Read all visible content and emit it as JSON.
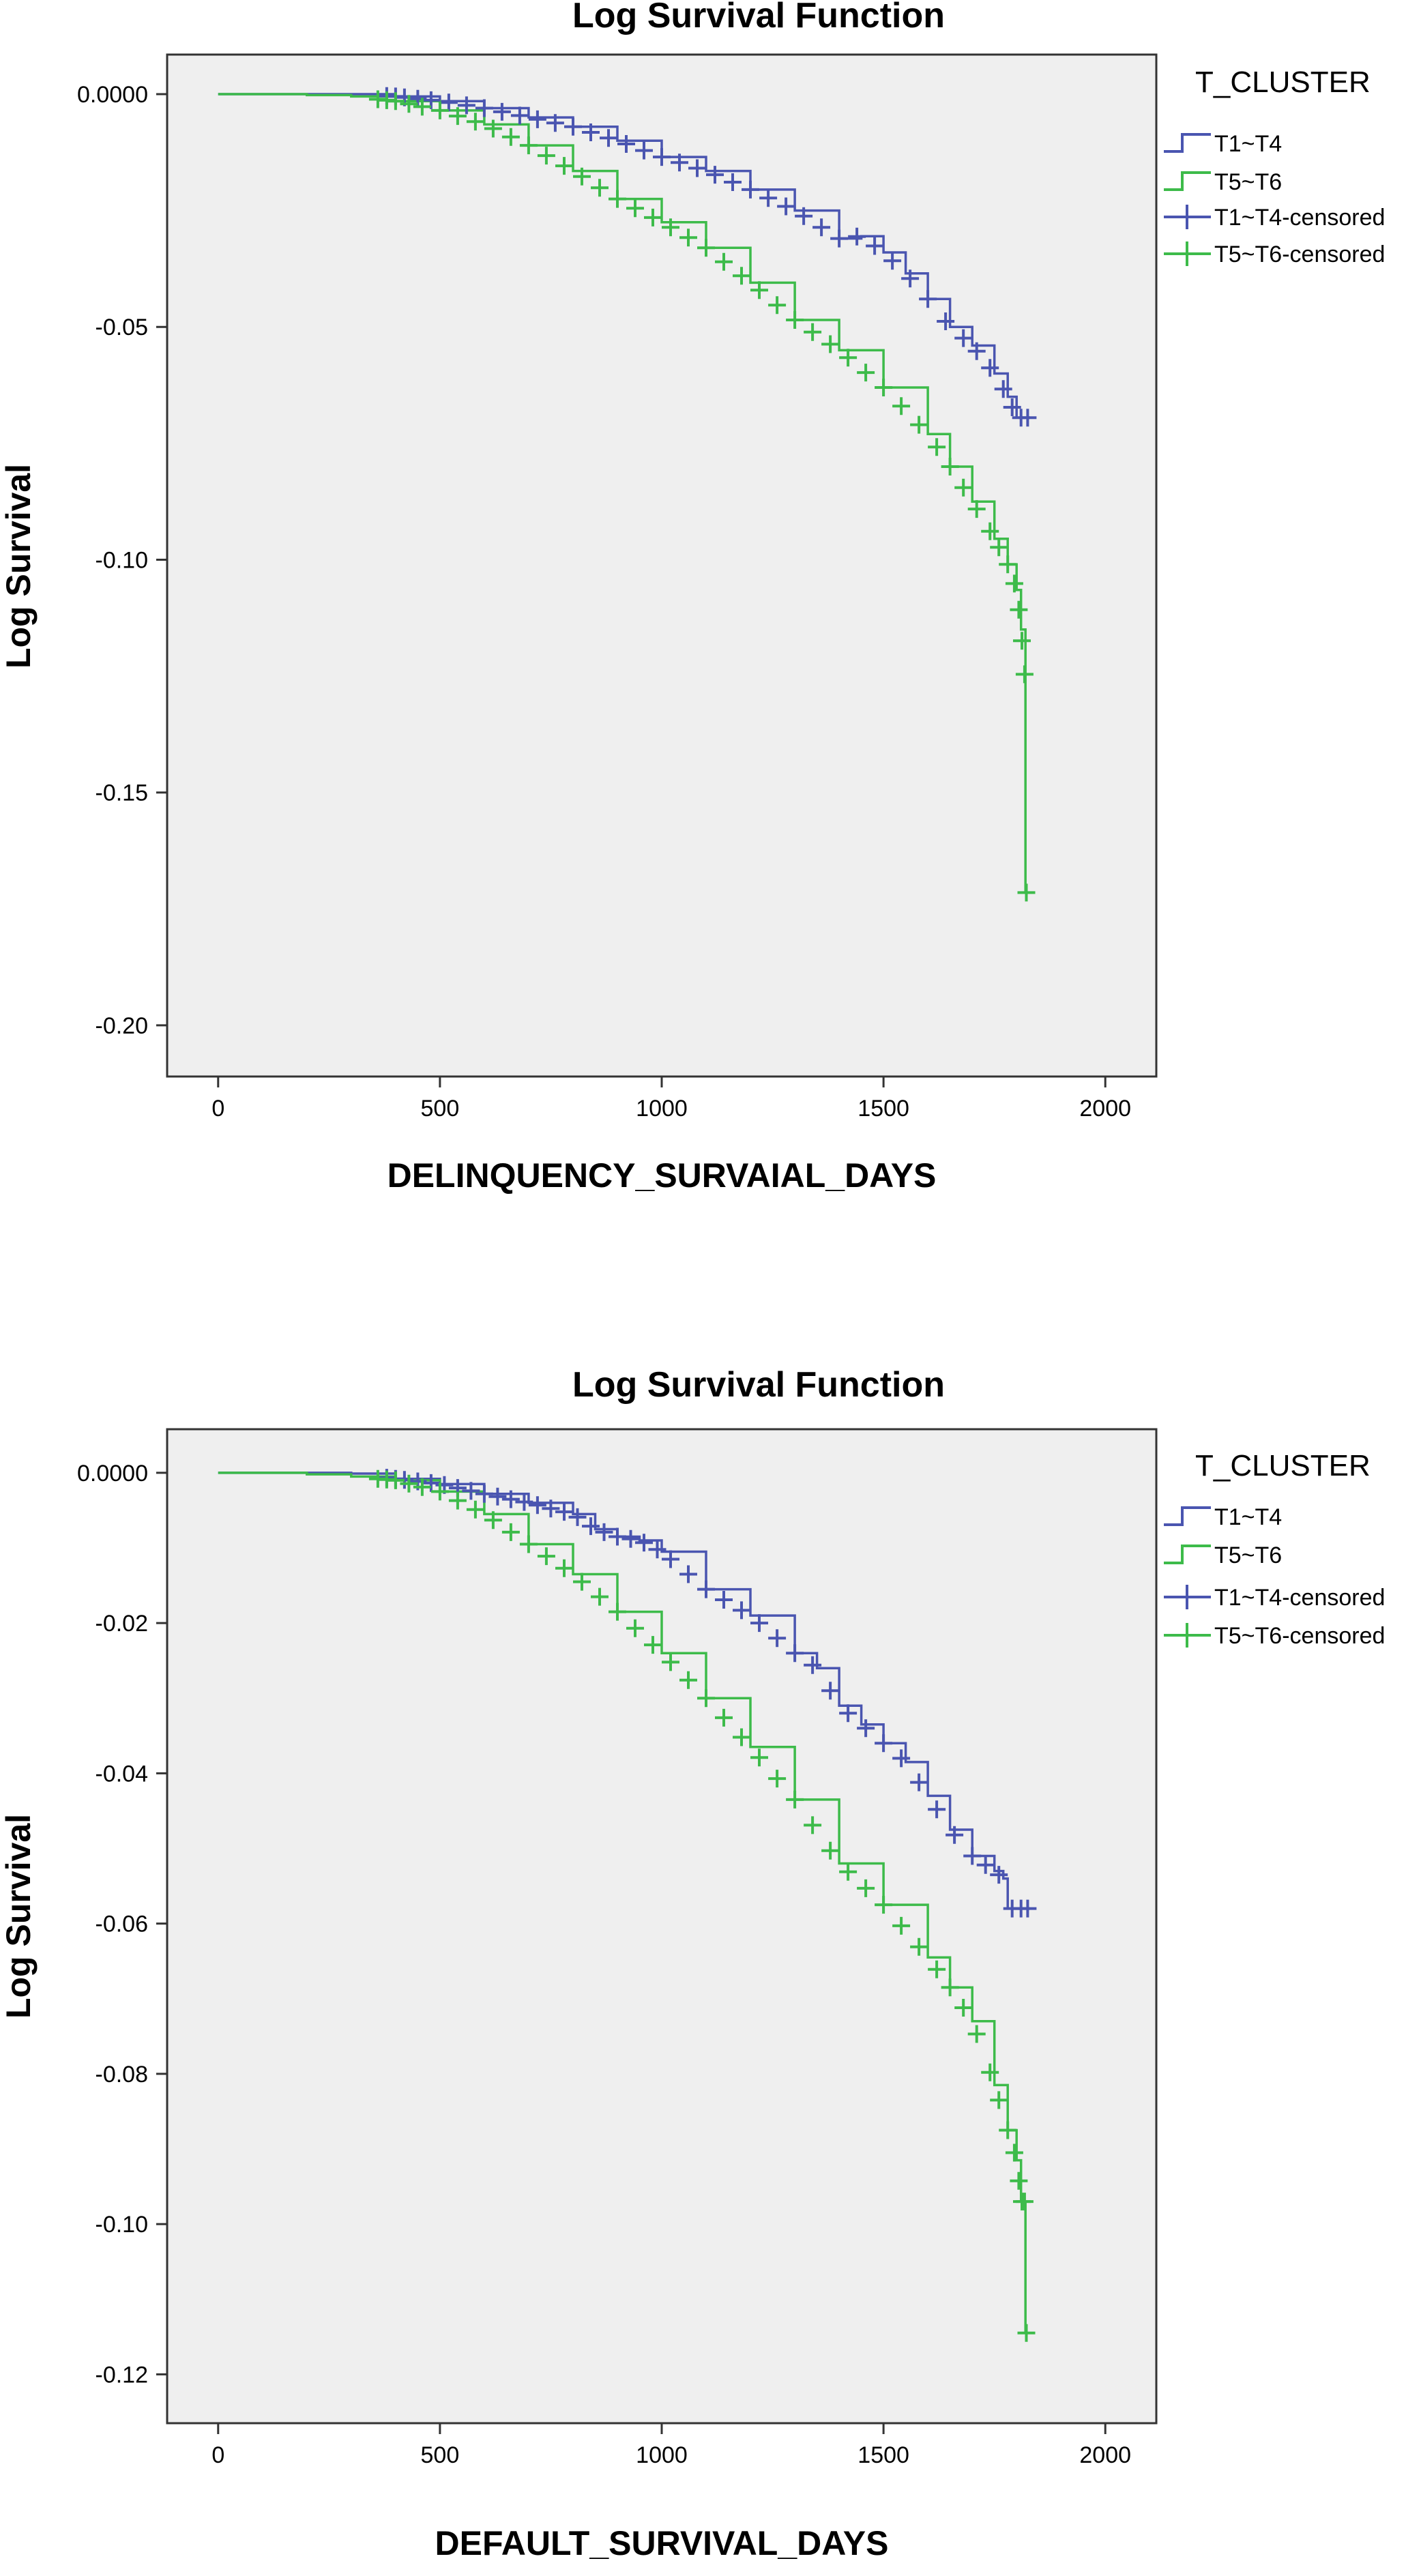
{
  "colors": {
    "t1_t4": "#4a55b0",
    "t5_t6": "#3dbb4a",
    "plot_bg": "#efefef",
    "axis": "#333333"
  },
  "chart_data": [
    {
      "type": "line",
      "title": "Log Survival Function",
      "xlabel": "DELINQUENCY_SURVAIAL_DAYS",
      "ylabel": "Log Survival",
      "xlim": [
        -115,
        2115
      ],
      "ylim": [
        -0.211,
        0.0085
      ],
      "x_ticks": [
        0,
        500,
        1000,
        1500,
        2000
      ],
      "x_tick_labels": [
        "0",
        "500",
        "1000",
        "1500",
        "2000"
      ],
      "y_ticks": [
        0,
        -0.05,
        -0.1,
        -0.15,
        -0.2
      ],
      "y_tick_labels": [
        "0.0000",
        "-0.05",
        "-0.10",
        "-0.15",
        "-0.20"
      ],
      "grid": false,
      "legend_title": "T_CLUSTER",
      "legend": [
        "T1~T4",
        "T5~T6",
        "T1~T4-censored",
        "T5~T6-censored"
      ],
      "series": [
        {
          "name": "T1~T4",
          "x": [
            0,
            300,
            400,
            500,
            600,
            700,
            800,
            900,
            1000,
            1100,
            1200,
            1300,
            1400,
            1450,
            1500,
            1550,
            1600,
            1650,
            1700,
            1750,
            1780,
            1800,
            1830
          ],
          "y": [
            0,
            0,
            -0.0005,
            -0.0015,
            -0.003,
            -0.005,
            -0.007,
            -0.01,
            -0.0135,
            -0.0165,
            -0.0205,
            -0.025,
            -0.031,
            -0.0305,
            -0.034,
            -0.0385,
            -0.044,
            -0.05,
            -0.054,
            -0.06,
            -0.065,
            -0.0695,
            -0.0695
          ],
          "censored_x": [
            380,
            400,
            420,
            450,
            480,
            520,
            560,
            600,
            640,
            680,
            720,
            760,
            800,
            840,
            880,
            920,
            960,
            1000,
            1040,
            1080,
            1120,
            1160,
            1200,
            1240,
            1280,
            1320,
            1360,
            1400,
            1440,
            1480,
            1520,
            1560,
            1600,
            1640,
            1680,
            1710,
            1740,
            1770,
            1790,
            1810,
            1825
          ]
        },
        {
          "name": "T5~T6",
          "x": [
            0,
            200,
            300,
            400,
            500,
            600,
            700,
            800,
            900,
            1000,
            1100,
            1200,
            1300,
            1400,
            1500,
            1600,
            1650,
            1700,
            1750,
            1780,
            1800,
            1810,
            1820,
            1820,
            1822
          ],
          "y": [
            0,
            -0.0002,
            -0.0005,
            -0.0015,
            -0.0035,
            -0.0065,
            -0.011,
            -0.0165,
            -0.0225,
            -0.0275,
            -0.033,
            -0.0405,
            -0.0485,
            -0.055,
            -0.063,
            -0.073,
            -0.08,
            -0.0875,
            -0.0955,
            -0.101,
            -0.1065,
            -0.115,
            -0.127,
            -0.1715,
            -0.1715
          ],
          "censored_x": [
            360,
            380,
            400,
            430,
            460,
            500,
            540,
            580,
            620,
            660,
            700,
            740,
            780,
            820,
            860,
            900,
            940,
            980,
            1020,
            1060,
            1100,
            1140,
            1180,
            1220,
            1260,
            1300,
            1340,
            1380,
            1420,
            1460,
            1500,
            1540,
            1580,
            1620,
            1650,
            1680,
            1710,
            1740,
            1760,
            1780,
            1795,
            1805,
            1812,
            1818,
            1822
          ]
        }
      ]
    },
    {
      "type": "line",
      "title": "Log Survival Function",
      "xlabel": "DEFAULT_SURVIVAL_DAYS",
      "ylabel": "Log Survival",
      "xlim": [
        -115,
        2115
      ],
      "ylim": [
        -0.1265,
        0.0058
      ],
      "x_ticks": [
        0,
        500,
        1000,
        1500,
        2000
      ],
      "x_tick_labels": [
        "0",
        "500",
        "1000",
        "1500",
        "2000"
      ],
      "y_ticks": [
        0,
        -0.02,
        -0.04,
        -0.06,
        -0.08,
        -0.1,
        -0.12
      ],
      "y_tick_labels": [
        "0.0000",
        "-0.02",
        "-0.04",
        "-0.06",
        "-0.08",
        "-0.10",
        "-0.12"
      ],
      "grid": false,
      "legend_title": "T_CLUSTER",
      "legend": [
        "T1~T4",
        "T5~T6",
        "T1~T4-censored",
        "T5~T6-censored"
      ],
      "series": [
        {
          "name": "T1~T4",
          "x": [
            0,
            300,
            400,
            500,
            600,
            700,
            800,
            850,
            900,
            950,
            1000,
            1100,
            1200,
            1300,
            1350,
            1400,
            1450,
            1500,
            1550,
            1600,
            1650,
            1700,
            1750,
            1770,
            1780,
            1830
          ],
          "y": [
            0,
            -0.0001,
            -0.0008,
            -0.0015,
            -0.0028,
            -0.004,
            -0.0055,
            -0.0075,
            -0.0085,
            -0.009,
            -0.0105,
            -0.0155,
            -0.019,
            -0.024,
            -0.026,
            -0.031,
            -0.0335,
            -0.036,
            -0.0385,
            -0.043,
            -0.0475,
            -0.051,
            -0.053,
            -0.054,
            -0.058,
            -0.058
          ],
          "censored_x": [
            380,
            400,
            420,
            450,
            480,
            510,
            540,
            570,
            600,
            630,
            660,
            690,
            720,
            750,
            780,
            810,
            840,
            870,
            900,
            930,
            960,
            990,
            1020,
            1060,
            1100,
            1140,
            1180,
            1220,
            1260,
            1300,
            1340,
            1380,
            1420,
            1460,
            1500,
            1540,
            1580,
            1620,
            1660,
            1700,
            1730,
            1760,
            1790,
            1810,
            1825
          ]
        },
        {
          "name": "T5~T6",
          "x": [
            0,
            200,
            300,
            400,
            500,
            600,
            700,
            800,
            900,
            1000,
            1100,
            1200,
            1300,
            1400,
            1500,
            1600,
            1650,
            1700,
            1750,
            1780,
            1800,
            1810,
            1820,
            1820,
            1822
          ],
          "y": [
            0,
            -0.0002,
            -0.0005,
            -0.001,
            -0.0025,
            -0.0055,
            -0.0095,
            -0.0135,
            -0.0185,
            -0.024,
            -0.03,
            -0.0365,
            -0.0435,
            -0.052,
            -0.0575,
            -0.0645,
            -0.0685,
            -0.073,
            -0.0815,
            -0.0875,
            -0.0915,
            -0.097,
            -0.097,
            -0.1145,
            -0.1145
          ],
          "censored_x": [
            360,
            380,
            400,
            430,
            460,
            500,
            540,
            580,
            620,
            660,
            700,
            740,
            780,
            820,
            860,
            900,
            940,
            980,
            1020,
            1060,
            1100,
            1140,
            1180,
            1220,
            1260,
            1300,
            1340,
            1380,
            1420,
            1460,
            1500,
            1540,
            1580,
            1620,
            1650,
            1680,
            1710,
            1740,
            1760,
            1780,
            1795,
            1805,
            1812,
            1818,
            1822
          ]
        }
      ]
    }
  ]
}
